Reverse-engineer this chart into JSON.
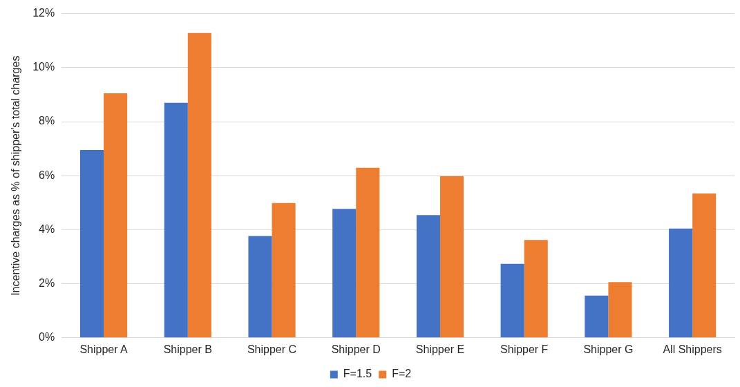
{
  "chart_data": {
    "type": "bar",
    "ylabel": "Incentive charges as % of shipper's total charges",
    "categories": [
      "Shipper A",
      "Shipper B",
      "Shipper C",
      "Shipper D",
      "Shipper E",
      "Shipper F",
      "Shipper G",
      "All Shippers"
    ],
    "series": [
      {
        "name": "F=1.5",
        "color": "#4472c4",
        "values": [
          6.95,
          8.7,
          3.77,
          4.77,
          4.54,
          2.74,
          1.56,
          4.04
        ]
      },
      {
        "name": "F=2",
        "color": "#ed7d31",
        "values": [
          9.05,
          11.28,
          4.99,
          6.29,
          5.98,
          3.62,
          2.06,
          5.34
        ]
      }
    ],
    "ylim": [
      0,
      12
    ],
    "yticks": [
      {
        "value": 0,
        "label": "0%"
      },
      {
        "value": 2,
        "label": "2%"
      },
      {
        "value": 4,
        "label": "4%"
      },
      {
        "value": 6,
        "label": "6%"
      },
      {
        "value": 8,
        "label": "8%"
      },
      {
        "value": 10,
        "label": "10%"
      },
      {
        "value": 12,
        "label": "12%"
      }
    ],
    "grid": "y",
    "legend": "bottom"
  }
}
